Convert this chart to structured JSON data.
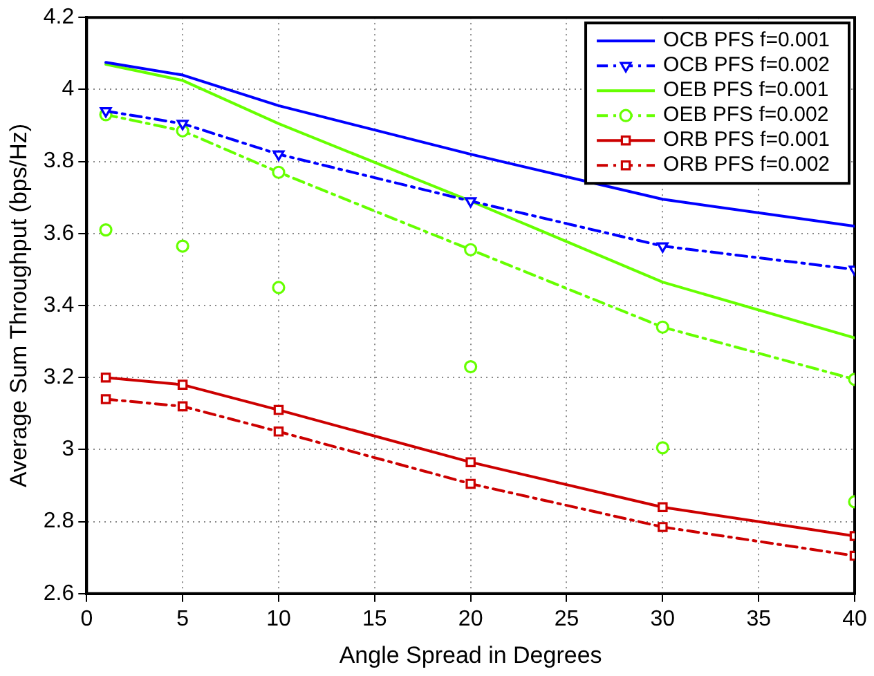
{
  "chart_data": {
    "type": "line",
    "xlabel": "Angle Spread in Degrees",
    "ylabel": "Average Sum Throughput (bps/Hz)",
    "x": [
      1,
      5,
      10,
      20,
      30,
      40
    ],
    "xlim": [
      0,
      40
    ],
    "xticks": [
      0,
      5,
      10,
      15,
      20,
      25,
      30,
      35,
      40
    ],
    "ylim": [
      2.6,
      4.2
    ],
    "yticks": [
      2.6,
      2.8,
      3,
      3.2,
      3.4,
      3.6,
      3.8,
      4,
      4.2
    ],
    "grid": true,
    "legend": "top right",
    "series": [
      {
        "name": "OCB PFS f=0.001",
        "color": "#0000ff",
        "line_style": "solid",
        "marker": "none",
        "values": [
          4.075,
          4.04,
          3.955,
          3.82,
          3.695,
          3.62
        ]
      },
      {
        "name": "OCB PFS f=0.002",
        "color": "#0000ff",
        "line_style": "dashed",
        "marker": "triangle",
        "values": [
          3.94,
          3.905,
          3.82,
          3.69,
          3.565,
          3.5
        ]
      },
      {
        "name": "OEB PFS f=0.001",
        "color": "#66ff00",
        "line_style": "solid",
        "marker": "none",
        "values": [
          4.07,
          4.025,
          3.905,
          3.69,
          3.465,
          3.31
        ]
      },
      {
        "name": "OEB PFS f=0.002",
        "color": "#66ff00",
        "line_style": "dashed",
        "marker": "circle",
        "values": [
          3.93,
          3.885,
          3.77,
          3.555,
          3.34,
          3.195
        ]
      },
      {
        "type": "scatter",
        "color": "#66ff00",
        "marker": "circle",
        "values": [
          3.61,
          3.565,
          3.45,
          3.23,
          3.005,
          2.855
        ]
      },
      {
        "name": "ORB PFS f=0.001",
        "color": "#cc0000",
        "line_style": "solid",
        "marker": "square",
        "values": [
          3.2,
          3.18,
          3.11,
          2.965,
          2.84,
          2.76
        ]
      },
      {
        "name": "ORB PFS f=0.002",
        "color": "#cc0000",
        "line_style": "dashed",
        "marker": "square",
        "values": [
          3.14,
          3.12,
          3.05,
          2.905,
          2.785,
          2.705
        ]
      }
    ]
  }
}
